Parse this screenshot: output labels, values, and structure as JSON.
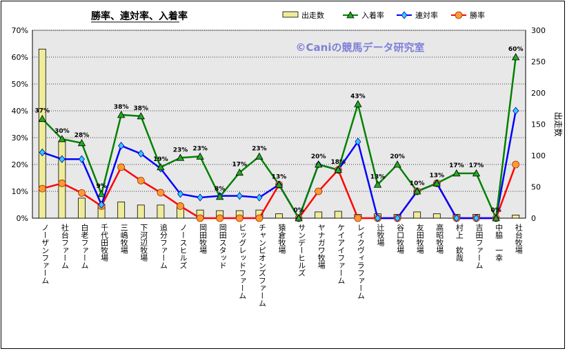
{
  "chart_data": {
    "type": "bar+line",
    "title": "勝率、連対率、入着率",
    "watermark": "©Caniの競馬データ研究室",
    "y2label": "出走数",
    "ylim": [
      0,
      70
    ],
    "y2lim": [
      0,
      300
    ],
    "yticks": [
      "0%",
      "10%",
      "20%",
      "30%",
      "40%",
      "50%",
      "60%",
      "70%"
    ],
    "y2ticks": [
      0,
      50,
      100,
      150,
      200,
      250,
      300
    ],
    "categories": [
      "ノーザンファーム",
      "社台ファーム",
      "白老ファーム",
      "千代田牧場",
      "三嶋牧場",
      "下河辺牧場",
      "追分ファーム",
      "ノースヒルズ",
      "岡田牧場",
      "岡田スタッド",
      "ビッグレッドファーム",
      "チャンピオンズファーム",
      "猿倉牧場",
      "サンデーヒルズ",
      "ヤナガワ牧場",
      "ケイアイファーム",
      "レイクヴィラファーム",
      "辻牧場",
      "谷口牧場",
      "友田牧場",
      "高昭牧場",
      "村上　欽哉",
      "吉田ファーム",
      "中脇　一幸",
      "社台牧場"
    ],
    "legend": [
      "出走数",
      "入着率",
      "連対率",
      "勝率"
    ],
    "series": [
      {
        "name": "出走数",
        "kind": "bar",
        "axis": "right",
        "color": "#eeec9a",
        "values": [
          270,
          123,
          32,
          22,
          26,
          21,
          21,
          20,
          13,
          12,
          12,
          13,
          7,
          0,
          10,
          11,
          6,
          7,
          6,
          10,
          7,
          6,
          6,
          0,
          5
        ]
      },
      {
        "name": "入着率",
        "kind": "line",
        "axis": "left",
        "color": "#008000",
        "marker": "triangle",
        "values": [
          37,
          29.5,
          28,
          9,
          38.5,
          38,
          19,
          22.5,
          23,
          8,
          17,
          23,
          12.5,
          0,
          20,
          18,
          42.5,
          12.5,
          20,
          10,
          13,
          16.7,
          16.7,
          0,
          60
        ]
      },
      {
        "name": "連対率",
        "kind": "line",
        "axis": "left",
        "color": "#0000ff",
        "marker": "diamond",
        "values": [
          24.5,
          22,
          22,
          5,
          27,
          24,
          18.5,
          9,
          7.7,
          8.3,
          8.3,
          7.7,
          12.5,
          0,
          20,
          18,
          28.5,
          0,
          0,
          10,
          13,
          0,
          0,
          0,
          40
        ]
      },
      {
        "name": "勝率",
        "kind": "line",
        "axis": "left",
        "color": "#ff0000",
        "marker": "circle",
        "values": [
          11,
          13,
          9.4,
          4.5,
          19,
          14,
          9.5,
          4.5,
          0,
          0,
          0,
          0,
          12.5,
          0,
          10,
          18,
          0,
          0,
          0,
          10,
          13,
          0,
          0,
          0,
          20
        ]
      }
    ],
    "data_labels": [
      "37%",
      "30%",
      "28%",
      "9%",
      "38%",
      "38%",
      "19%",
      "23%",
      "23%",
      "8%",
      "17%",
      "23%",
      "13%",
      "0%",
      "20%",
      "18%",
      "43%",
      "13%",
      "20%",
      "10%",
      "13%",
      "17%",
      "17%",
      "0%",
      "60%"
    ],
    "colors": {
      "plot_bg": "#e8e8e8",
      "grid": "#000000"
    },
    "grid": true,
    "legend_position": "top-right"
  }
}
